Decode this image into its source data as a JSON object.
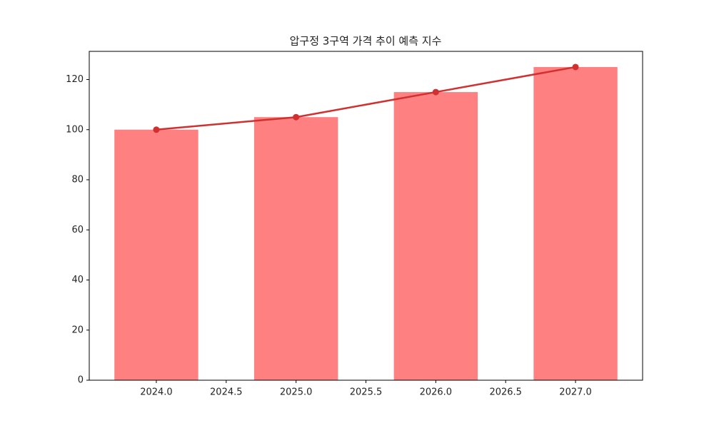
{
  "chart_data": {
    "type": "bar",
    "title": "압구정 3구역 가격 추이 예측 지수",
    "x": [
      2024,
      2025,
      2026,
      2027
    ],
    "series": [
      {
        "type": "bar",
        "color": "#ff8080",
        "values": [
          100,
          105,
          115,
          125
        ]
      },
      {
        "type": "line",
        "color": "#d03030",
        "values": [
          100,
          105,
          115,
          125
        ]
      }
    ],
    "xlim": [
      2023.52,
      2027.48
    ],
    "ylim": [
      0,
      131.25
    ],
    "xticks": [
      {
        "value": 2024.0,
        "label": "2024.0"
      },
      {
        "value": 2024.5,
        "label": "2024.5"
      },
      {
        "value": 2025.0,
        "label": "2025.0"
      },
      {
        "value": 2025.5,
        "label": "2025.5"
      },
      {
        "value": 2026.0,
        "label": "2026.0"
      },
      {
        "value": 2026.5,
        "label": "2026.5"
      },
      {
        "value": 2027.0,
        "label": "2027.0"
      }
    ],
    "yticks": [
      0,
      20,
      40,
      60,
      80,
      100,
      120
    ],
    "grid": false
  }
}
